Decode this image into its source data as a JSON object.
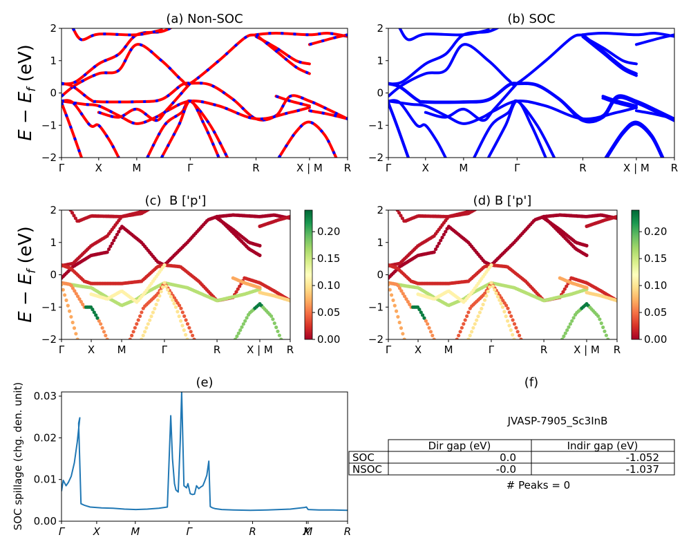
{
  "chart_data": [
    {
      "id": "a",
      "type": "line",
      "title": "(a) Non-SOC",
      "ylabel": "E − E_f (eV)",
      "ylim": [
        -2,
        2
      ],
      "yticks": [
        "2",
        "1",
        "0",
        "−1",
        "−2"
      ],
      "ytick_values": [
        2,
        1,
        0,
        -1,
        -2
      ],
      "xticks": [
        {
          "label": "Γ",
          "k": 0.0
        },
        {
          "label": "X",
          "k": 0.13
        },
        {
          "label": "M",
          "k": 0.263
        },
        {
          "label": "Γ",
          "k": 0.45
        },
        {
          "label": "R",
          "k": 0.68
        },
        {
          "label": "X | M",
          "k": 0.867
        },
        {
          "label": "R",
          "k": 1.0
        }
      ],
      "style": "red line with blue dashes overlay",
      "colors": {
        "primary": "#ff0000",
        "dash": "#0000ff"
      },
      "bands": [
        [
          [
            0,
            -0.1
          ],
          [
            0.05,
            0.25
          ],
          [
            0.13,
            0.6
          ],
          [
            0.2,
            0.7
          ],
          [
            0.263,
            1.5
          ],
          [
            0.35,
            1.0
          ],
          [
            0.42,
            0.4
          ],
          [
            0.45,
            0.3
          ],
          [
            0.55,
            1.0
          ],
          [
            0.64,
            1.7
          ],
          [
            0.68,
            1.8
          ],
          [
            0.75,
            1.85
          ],
          [
            0.867,
            1.8
          ],
          [
            0.93,
            1.85
          ],
          [
            1.0,
            1.75
          ]
        ],
        [
          [
            0,
            0.28
          ],
          [
            0.05,
            0.35
          ],
          [
            0.13,
            0.9
          ],
          [
            0.2,
            1.2
          ],
          [
            0.263,
            1.8
          ],
          [
            0.35,
            1.9
          ],
          [
            0.4,
            2.1
          ]
        ],
        [
          [
            0,
            0.3
          ],
          [
            0.04,
            0.2
          ],
          [
            0.1,
            -0.2
          ],
          [
            0.13,
            -0.27
          ],
          [
            0.263,
            -0.27
          ],
          [
            0.35,
            -0.2
          ],
          [
            0.42,
            0.25
          ],
          [
            0.45,
            0.3
          ],
          [
            0.52,
            0.25
          ],
          [
            0.6,
            -0.2
          ],
          [
            0.68,
            -0.8
          ],
          [
            0.75,
            -0.7
          ],
          [
            0.8,
            -0.1
          ],
          [
            0.867,
            -0.25
          ],
          [
            0.93,
            -0.5
          ],
          [
            1.0,
            -0.8
          ]
        ],
        [
          [
            0,
            -0.25
          ],
          [
            0.08,
            -0.35
          ],
          [
            0.13,
            -0.4
          ],
          [
            0.2,
            -0.7
          ],
          [
            0.263,
            -0.95
          ],
          [
            0.33,
            -0.75
          ],
          [
            0.37,
            -0.55
          ],
          [
            0.45,
            -0.25
          ],
          [
            0.55,
            -0.4
          ],
          [
            0.68,
            -0.8
          ],
          [
            0.8,
            -0.6
          ],
          [
            0.867,
            -0.45
          ]
        ],
        [
          [
            0,
            -0.25
          ],
          [
            0.04,
            -0.3
          ],
          [
            0.1,
            -1.0
          ],
          [
            0.13,
            -1.0
          ],
          [
            0.17,
            -1.5
          ],
          [
            0.2,
            -2.0
          ]
        ],
        [
          [
            0,
            -0.3
          ],
          [
            0.03,
            -1.0
          ],
          [
            0.07,
            -2.0
          ]
        ],
        [
          [
            0.3,
            -2.0
          ],
          [
            0.36,
            -1.0
          ],
          [
            0.42,
            -0.6
          ],
          [
            0.45,
            -0.25
          ],
          [
            0.52,
            -1.0
          ],
          [
            0.58,
            -2.0
          ]
        ],
        [
          [
            0.35,
            -2.0
          ],
          [
            0.41,
            -1.0
          ],
          [
            0.45,
            -0.25
          ],
          [
            0.5,
            -1.0
          ],
          [
            0.55,
            -2.0
          ]
        ],
        [
          [
            0.76,
            -2.0
          ],
          [
            0.82,
            -1.2
          ],
          [
            0.867,
            -0.9
          ],
          [
            0.92,
            -1.3
          ],
          [
            0.96,
            -2.0
          ]
        ],
        [
          [
            0.867,
            1.5
          ],
          [
            0.95,
            1.7
          ],
          [
            1.0,
            1.8
          ]
        ],
        [
          [
            0.68,
            1.75
          ],
          [
            0.75,
            1.4
          ],
          [
            0.82,
            1.0
          ],
          [
            0.867,
            0.9
          ]
        ],
        [
          [
            0.68,
            1.8
          ],
          [
            0.75,
            1.3
          ],
          [
            0.82,
            0.8
          ],
          [
            0.867,
            0.6
          ]
        ],
        [
          [
            0.04,
            2.0
          ],
          [
            0.07,
            1.65
          ],
          [
            0.13,
            1.82
          ],
          [
            0.263,
            1.8
          ],
          [
            0.35,
            1.95
          ]
        ],
        [
          [
            0.13,
            -0.6
          ],
          [
            0.2,
            -0.75
          ],
          [
            0.263,
            -0.5
          ],
          [
            0.33,
            -0.85
          ],
          [
            0.37,
            -0.5
          ],
          [
            0.45,
            0.3
          ]
        ],
        [
          [
            0.75,
            -0.1
          ],
          [
            0.8,
            -0.25
          ],
          [
            0.867,
            -0.4
          ]
        ],
        [
          [
            0.867,
            -0.55
          ],
          [
            0.93,
            -0.65
          ],
          [
            1.0,
            -0.8
          ]
        ]
      ]
    },
    {
      "id": "b",
      "type": "line",
      "title": "(b) SOC",
      "ylim": [
        -2,
        2
      ],
      "yticks": [
        "2",
        "1",
        "0",
        "−1",
        "−2"
      ],
      "ytick_values": [
        2,
        1,
        0,
        -1,
        -2
      ],
      "xticks": [
        {
          "label": "Γ",
          "k": 0.0
        },
        {
          "label": "X",
          "k": 0.13
        },
        {
          "label": "M",
          "k": 0.263
        },
        {
          "label": "Γ",
          "k": 0.45
        },
        {
          "label": "R",
          "k": 0.68
        },
        {
          "label": "X | M",
          "k": 0.867
        },
        {
          "label": "R",
          "k": 1.0
        }
      ],
      "colors": {
        "primary": "#0000ff"
      }
    },
    {
      "id": "c",
      "type": "scatter",
      "title": "(c)  B ['p']",
      "ylabel": "E − E_f (eV)",
      "ylim": [
        -2,
        2
      ],
      "yticks": [
        "2",
        "1",
        "0",
        "−1",
        "−2"
      ],
      "ytick_values": [
        2,
        1,
        0,
        -1,
        -2
      ],
      "xticks": [
        {
          "label": "Γ",
          "k": 0.0
        },
        {
          "label": "X",
          "k": 0.13
        },
        {
          "label": "M",
          "k": 0.263
        },
        {
          "label": "Γ",
          "k": 0.45
        },
        {
          "label": "R",
          "k": 0.68
        },
        {
          "label": "X | M",
          "k": 0.867
        },
        {
          "label": "R",
          "k": 1.0
        }
      ],
      "colorbar": {
        "cmap": "RdYlGn",
        "range": [
          0,
          0.24
        ],
        "ticks": [
          "0.00",
          "0.05",
          "0.10",
          "0.15",
          "0.20"
        ],
        "tick_values": [
          0,
          0.05,
          0.1,
          0.15,
          0.2
        ]
      }
    },
    {
      "id": "d",
      "type": "scatter",
      "title": "(d) B ['p']",
      "ylim": [
        -2,
        2
      ],
      "yticks": [
        "2",
        "1",
        "0",
        "−1",
        "−2"
      ],
      "ytick_values": [
        2,
        1,
        0,
        -1,
        -2
      ],
      "xticks": [
        {
          "label": "Γ",
          "k": 0.0
        },
        {
          "label": "X",
          "k": 0.13
        },
        {
          "label": "M",
          "k": 0.263
        },
        {
          "label": "Γ",
          "k": 0.45
        },
        {
          "label": "R",
          "k": 0.68
        },
        {
          "label": "X | M",
          "k": 0.867
        },
        {
          "label": "R",
          "k": 1.0
        }
      ],
      "colorbar": {
        "cmap": "RdYlGn",
        "range": [
          0,
          0.24
        ],
        "ticks": [
          "0.00",
          "0.05",
          "0.10",
          "0.15",
          "0.20"
        ],
        "tick_values": [
          0,
          0.05,
          0.1,
          0.15,
          0.2
        ]
      }
    },
    {
      "id": "e",
      "type": "line",
      "title": "(e)",
      "ylabel": "SOC spillage (chg. den. unit)",
      "ylim": [
        0,
        0.031
      ],
      "yticks": [
        "0.03",
        "0.02",
        "0.01",
        "0.00"
      ],
      "ytick_values": [
        0.03,
        0.02,
        0.01,
        0.0
      ],
      "xticks": [
        {
          "label": "Γ",
          "k": 0.0
        },
        {
          "label": "X",
          "k": 0.123
        },
        {
          "label": "M",
          "k": 0.258
        },
        {
          "label": "Γ",
          "k": 0.446
        },
        {
          "label": "R",
          "k": 0.668
        },
        {
          "label": "X",
          "k": 0.856
        },
        {
          "label": "M",
          "k": 0.862
        },
        {
          "label": "R",
          "k": 1.0
        }
      ],
      "color": "#1f77b4",
      "x": [
        0.0,
        0.006,
        0.016,
        0.024,
        0.034,
        0.045,
        0.055,
        0.064,
        0.06,
        0.068,
        0.081,
        0.1,
        0.14,
        0.18,
        0.22,
        0.26,
        0.3,
        0.34,
        0.37,
        0.382,
        0.388,
        0.395,
        0.4,
        0.408,
        0.415,
        0.42,
        0.428,
        0.437,
        0.442,
        0.45,
        0.458,
        0.465,
        0.472,
        0.48,
        0.487,
        0.494,
        0.5,
        0.508,
        0.515,
        0.52,
        0.528,
        0.538,
        0.56,
        0.6,
        0.66,
        0.72,
        0.8,
        0.85,
        0.856,
        0.862,
        0.9,
        0.95,
        1.0
      ],
      "y": [
        0.0072,
        0.0098,
        0.0085,
        0.0093,
        0.0108,
        0.014,
        0.019,
        0.0248,
        0.0235,
        0.0042,
        0.0038,
        0.0034,
        0.0032,
        0.0031,
        0.0029,
        0.0028,
        0.0029,
        0.0031,
        0.0034,
        0.0253,
        0.015,
        0.009,
        0.0075,
        0.007,
        0.019,
        0.031,
        0.0085,
        0.008,
        0.009,
        0.0066,
        0.0064,
        0.0065,
        0.0085,
        0.0078,
        0.0082,
        0.0085,
        0.0095,
        0.011,
        0.0144,
        0.0035,
        0.0032,
        0.003,
        0.0028,
        0.0027,
        0.0026,
        0.0027,
        0.0029,
        0.0033,
        0.0034,
        0.0028,
        0.0027,
        0.0027,
        0.0026
      ]
    },
    {
      "id": "f",
      "type": "table",
      "title": "(f)",
      "subtitle": "JVASP-7905_Sc3InB",
      "columns": [
        "",
        "Dir gap (eV)",
        "Indir gap (eV)"
      ],
      "rows": [
        [
          "SOC",
          "0.0",
          "-1.052"
        ],
        [
          "NSOC",
          "-0.0",
          "-1.037"
        ]
      ],
      "footer": "# Peaks = 0"
    }
  ]
}
